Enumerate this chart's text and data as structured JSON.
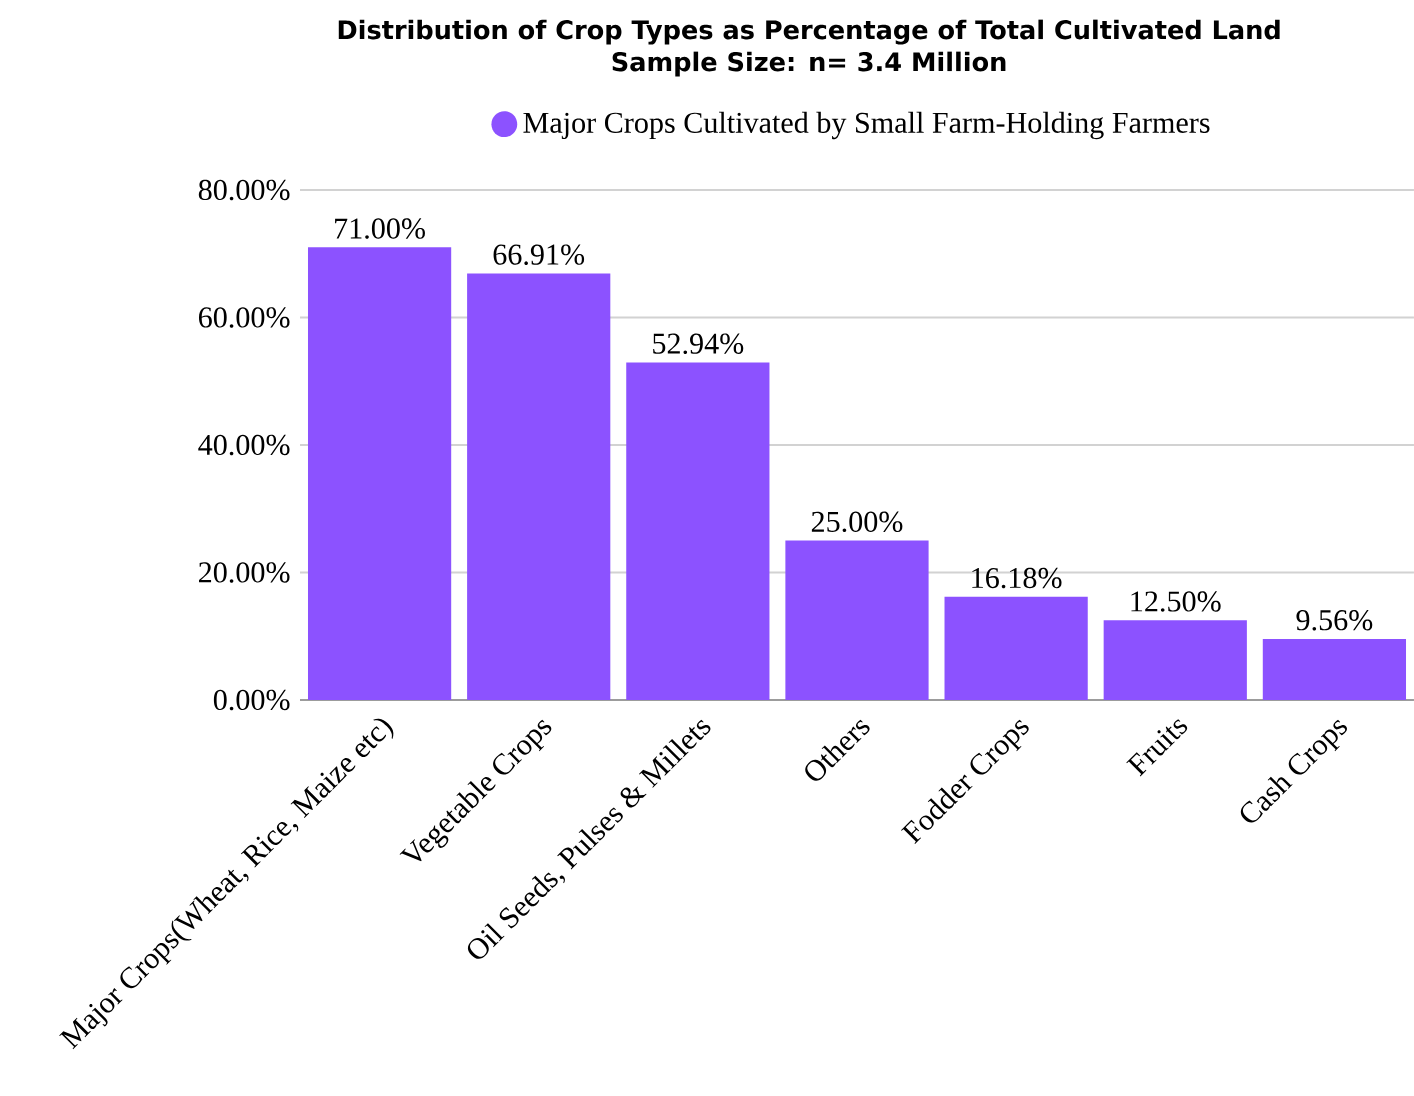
{
  "chart_data": {
    "type": "bar",
    "title": "Distribution of Crop Types as Percentage of Total Cultivated Land",
    "subtitle": "Sample Size: n= 3.4 Million",
    "categories": [
      "Major Crops(Wheat, Rice, Maize etc)",
      "Vegetable Crops",
      "Oil Seeds, Pulses & Millets",
      "Others",
      "Fodder Crops",
      "Fruits",
      "Cash Crops"
    ],
    "series": [
      {
        "name": "Major Crops Cultivated by Small Farm-Holding Farmers",
        "color": "#8c52ff",
        "values": [
          71.0,
          66.91,
          52.94,
          25.0,
          16.18,
          12.5,
          9.56
        ],
        "value_labels": [
          "71.00%",
          "66.91%",
          "52.94%",
          "25.00%",
          "16.18%",
          "12.50%",
          "9.56%"
        ]
      }
    ],
    "ylim": [
      0,
      80
    ],
    "yticks": [
      {
        "value": 0,
        "label": "0.00%"
      },
      {
        "value": 20,
        "label": "20.00%"
      },
      {
        "value": 40,
        "label": "40.00%"
      },
      {
        "value": 60,
        "label": "60.00%"
      },
      {
        "value": 80,
        "label": "80.00%"
      }
    ],
    "grid": "y",
    "legend": "top"
  }
}
